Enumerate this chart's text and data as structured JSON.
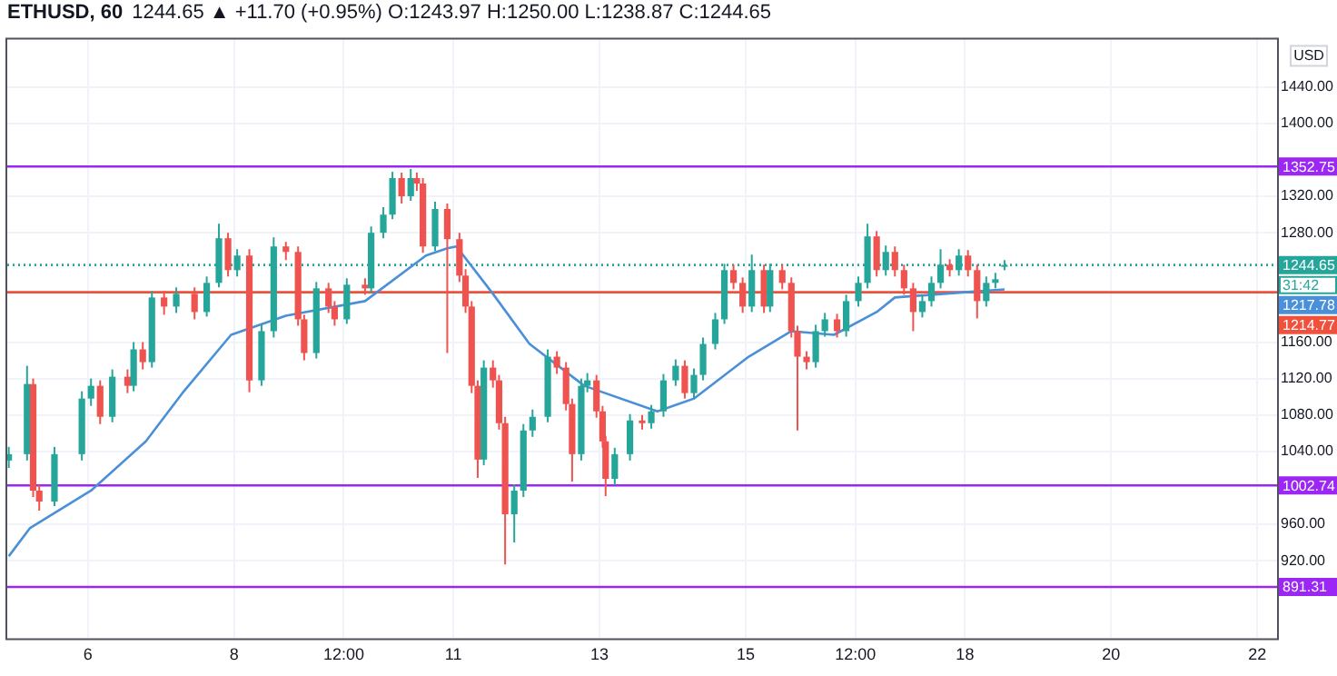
{
  "chart_data": {
    "type": "candlestick",
    "title": "ETHUSD, 60",
    "subtitle": "1244.65 ▲ +11.70 (+0.95%) O:1243.97 H:1250.00 L:1238.87 C:1244.65",
    "ylabel": "USD",
    "xlim": [
      "--01-04T21:30",
      "--01-22T06:30"
    ],
    "xticks": [
      {
        "value": "--01-06",
        "label": "6"
      },
      {
        "value": "--01-08",
        "label": "8"
      },
      {
        "value": "--01-09T12:00",
        "label": "12:00"
      },
      {
        "value": "--01-11",
        "label": "11"
      },
      {
        "value": "--01-13",
        "label": "13"
      },
      {
        "value": "--01-15",
        "label": "15"
      },
      {
        "value": "--01-16T12:00",
        "label": "12:00"
      },
      {
        "value": "--01-18",
        "label": "18"
      },
      {
        "value": "--01-20",
        "label": "20"
      },
      {
        "value": "--01-22",
        "label": "22"
      }
    ],
    "ylim": [
      835,
      1492
    ],
    "yticks": [
      {
        "value": 920,
        "label": "920.00"
      },
      {
        "value": 960,
        "label": "960.00"
      },
      {
        "value": 1040,
        "label": "1040.00"
      },
      {
        "value": 1080,
        "label": "1080.00"
      },
      {
        "value": 1120,
        "label": "1120.00"
      },
      {
        "value": 1160,
        "label": "1160.00"
      },
      {
        "value": 1280,
        "label": "1280.00"
      },
      {
        "value": 1320,
        "label": "1320.00"
      },
      {
        "value": 1400,
        "label": "1400.00"
      },
      {
        "value": 1440,
        "label": "1440.00"
      }
    ],
    "grid": true,
    "legend": false,
    "ref_lines": [
      {
        "axis": "y",
        "value": 1244.65,
        "label": "1244.65",
        "color": "#26a69a",
        "line_style": "dotted"
      },
      {
        "axis": "y",
        "value": 1352.75,
        "label": "1352.75",
        "color": "#9c27f5"
      },
      {
        "axis": "y",
        "value": 1002.74,
        "label": "1002.74",
        "color": "#9c27f5"
      },
      {
        "axis": "y",
        "value": 891.31,
        "label": "891.31",
        "color": "#9c27f5"
      },
      {
        "axis": "y",
        "value": 1214.77,
        "label": "1214.77",
        "color": "#f0513c"
      }
    ],
    "annotations": [
      "31:42",
      "1217.78"
    ],
    "series": [
      {
        "type": "line",
        "color": "#4a90d9",
        "x": [
          "--01-04T22:00",
          "--01-05T05:00",
          "--01-06T01:00",
          "--01-06T19:00",
          "--01-07T07:00",
          "--01-07T23:00",
          "--01-08T17:00",
          "--01-09T19:00",
          "--01-10T15:00",
          "--01-10T22:00",
          "--01-11T01:00",
          "--01-11T13:00",
          "--01-12T01:00",
          "--01-12T19:00",
          "--01-13T19:00",
          "--01-14T07:00",
          "--01-15T01:00",
          "--01-15T15:00",
          "--01-16T05:00",
          "--01-16T19:00",
          "--01-17T01:00",
          "--01-18T01:00",
          "--01-18T13:00"
        ],
        "values": [
          925,
          956,
          997,
          1051,
          1104,
          1168,
          1189,
          1205,
          1255,
          1263,
          1265,
          1213,
          1158,
          1112,
          1084,
          1098,
          1144,
          1172,
          1168,
          1193,
          1209,
          1215,
          1217.78
        ]
      },
      {
        "type": "candlestick",
        "x": [
          "--01-04T22:00",
          "--01-05T04:00",
          "--01-05T06:00",
          "--01-05T08:00",
          "--01-05T13:00",
          "--01-05T22:00",
          "--01-06T01:00",
          "--01-06T04:00",
          "--01-06T08:00",
          "--01-06T13:00",
          "--01-06T15:00",
          "--01-06T18:00",
          "--01-06T21:00",
          "--01-07T01:00",
          "--01-07T05:00",
          "--01-07T11:00",
          "--01-07T15:00",
          "--01-07T19:00",
          "--01-07T22:00",
          "--01-08T01:00",
          "--01-08T05:00",
          "--01-08T09:00",
          "--01-08T13:00",
          "--01-08T17:00",
          "--01-08T21:00",
          "--01-08T23:00",
          "--01-09T03:00",
          "--01-09T07:00",
          "--01-09T09:00",
          "--01-09T13:00",
          "--01-09T19:00",
          "--01-09T21:00",
          "--01-10T01:00",
          "--01-10T04:00",
          "--01-10T07:00",
          "--01-10T10:00",
          "--01-10T12:00",
          "--01-10T14:00",
          "--01-10T18:00",
          "--01-10T22:00",
          "--01-11T02:00",
          "--01-11T04:00",
          "--01-11T06:00",
          "--01-11T08:00",
          "--01-11T10:00",
          "--01-11T13:00",
          "--01-11T15:00",
          "--01-11T17:00",
          "--01-11T20:00",
          "--01-11T23:00",
          "--01-12T02:00",
          "--01-12T07:00",
          "--01-12T10:00",
          "--01-12T13:00",
          "--01-12T15:00",
          "--01-12T18:00",
          "--01-12T20:00",
          "--01-12T23:00",
          "--01-13T01:00",
          "--01-13T02:00",
          "--01-13T05:00",
          "--01-13T10:00",
          "--01-13T14:00",
          "--01-13T17:00",
          "--01-13T21:00",
          "--01-14T01:00",
          "--01-14T04:00",
          "--01-14T07:00",
          "--01-14T10:00",
          "--01-14T14:00",
          "--01-14T17:00",
          "--01-14T20:00",
          "--01-14T23:00",
          "--01-15T02:00",
          "--01-15T06:00",
          "--01-15T08:00",
          "--01-15T12:00",
          "--01-15T15:00",
          "--01-15T17:00",
          "--01-15T20:00",
          "--01-15T23:00",
          "--01-16T02:00",
          "--01-16T06:00",
          "--01-16T09:00",
          "--01-16T13:00",
          "--01-16T16:00",
          "--01-16T19:00",
          "--01-16T22:00",
          "--01-17T01:00",
          "--01-17T04:00",
          "--01-17T07:00",
          "--01-17T10:00",
          "--01-17T13:00",
          "--01-17T16:00",
          "--01-17T19:00",
          "--01-17T22:00",
          "--01-18T01:00",
          "--01-18T04:00",
          "--01-18T07:00",
          "--01-18T10:00",
          "--01-18T13:00"
        ],
        "ohlc": [
          [
            1030,
            1045,
            1022,
            1037
          ],
          [
            1037,
            1134,
            1030,
            1114
          ],
          [
            1114,
            1120,
            990,
            997
          ],
          [
            997,
            1003,
            975,
            985
          ],
          [
            985,
            1045,
            980,
            1037
          ],
          [
            1037,
            1106,
            1030,
            1098
          ],
          [
            1098,
            1120,
            1090,
            1112
          ],
          [
            1112,
            1118,
            1070,
            1078
          ],
          [
            1078,
            1130,
            1072,
            1122
          ],
          [
            1122,
            1130,
            1104,
            1112
          ],
          [
            1112,
            1160,
            1106,
            1152
          ],
          [
            1152,
            1160,
            1130,
            1138
          ],
          [
            1138,
            1216,
            1132,
            1209
          ],
          [
            1209,
            1216,
            1190,
            1199
          ],
          [
            1199,
            1220,
            1192,
            1213
          ],
          [
            1213,
            1220,
            1185,
            1193
          ],
          [
            1193,
            1232,
            1188,
            1225
          ],
          [
            1225,
            1290,
            1220,
            1274
          ],
          [
            1274,
            1280,
            1232,
            1239
          ],
          [
            1239,
            1262,
            1232,
            1255
          ],
          [
            1255,
            1262,
            1105,
            1118
          ],
          [
            1118,
            1180,
            1112,
            1172
          ],
          [
            1172,
            1275,
            1165,
            1265
          ],
          [
            1265,
            1270,
            1250,
            1259
          ],
          [
            1259,
            1265,
            1178,
            1185
          ],
          [
            1185,
            1190,
            1140,
            1148
          ],
          [
            1148,
            1226,
            1142,
            1219
          ],
          [
            1219,
            1225,
            1192,
            1199
          ],
          [
            1199,
            1205,
            1178,
            1185
          ],
          [
            1185,
            1230,
            1180,
            1223
          ],
          [
            1223,
            1230,
            1212,
            1219
          ],
          [
            1219,
            1287,
            1214,
            1280
          ],
          [
            1280,
            1308,
            1274,
            1300
          ],
          [
            1300,
            1347,
            1295,
            1340
          ],
          [
            1340,
            1346,
            1312,
            1320
          ],
          [
            1320,
            1350,
            1315,
            1340
          ],
          [
            1340,
            1346,
            1326,
            1334
          ],
          [
            1334,
            1340,
            1258,
            1265
          ],
          [
            1265,
            1314,
            1260,
            1306
          ],
          [
            1306,
            1312,
            1148,
            1273
          ],
          [
            1273,
            1280,
            1226,
            1233
          ],
          [
            1233,
            1240,
            1192,
            1199
          ],
          [
            1199,
            1205,
            1104,
            1112
          ],
          [
            1112,
            1118,
            1011,
            1031
          ],
          [
            1031,
            1140,
            1025,
            1132
          ],
          [
            1132,
            1140,
            1110,
            1118
          ],
          [
            1118,
            1124,
            1064,
            1071
          ],
          [
            1071,
            1078,
            916,
            971
          ],
          [
            971,
            1004,
            940,
            997
          ],
          [
            997,
            1070,
            990,
            1063
          ],
          [
            1063,
            1086,
            1056,
            1078
          ],
          [
            1078,
            1152,
            1072,
            1144
          ],
          [
            1144,
            1150,
            1125,
            1132
          ],
          [
            1132,
            1138,
            1085,
            1092
          ],
          [
            1092,
            1098,
            1007,
            1037
          ],
          [
            1037,
            1120,
            1030,
            1112
          ],
          [
            1112,
            1126,
            1105,
            1118
          ],
          [
            1118,
            1124,
            1077,
            1084
          ],
          [
            1084,
            1090,
            1044,
            1051
          ],
          [
            1051,
            1057,
            991,
            1010
          ],
          [
            1010,
            1044,
            1003,
            1037
          ],
          [
            1037,
            1081,
            1030,
            1074
          ],
          [
            1074,
            1080,
            1064,
            1071
          ],
          [
            1071,
            1091,
            1065,
            1084
          ],
          [
            1084,
            1125,
            1078,
            1118
          ],
          [
            1118,
            1141,
            1112,
            1134
          ],
          [
            1134,
            1140,
            1098,
            1104
          ],
          [
            1104,
            1131,
            1098,
            1124
          ],
          [
            1124,
            1165,
            1118,
            1158
          ],
          [
            1158,
            1192,
            1152,
            1185
          ],
          [
            1185,
            1246,
            1180,
            1239
          ],
          [
            1239,
            1245,
            1218,
            1225
          ],
          [
            1225,
            1231,
            1192,
            1199
          ],
          [
            1199,
            1256,
            1193,
            1239
          ],
          [
            1239,
            1245,
            1192,
            1199
          ],
          [
            1199,
            1246,
            1193,
            1239
          ],
          [
            1239,
            1245,
            1218,
            1225
          ],
          [
            1225,
            1231,
            1165,
            1172
          ],
          [
            1172,
            1178,
            1063,
            1144
          ],
          [
            1144,
            1150,
            1130,
            1138
          ],
          [
            1138,
            1179,
            1132,
            1172
          ],
          [
            1172,
            1192,
            1166,
            1185
          ],
          [
            1185,
            1191,
            1165,
            1172
          ],
          [
            1172,
            1212,
            1166,
            1205
          ],
          [
            1205,
            1232,
            1199,
            1225
          ],
          [
            1225,
            1290,
            1219,
            1276
          ],
          [
            1276,
            1282,
            1232,
            1239
          ],
          [
            1239,
            1266,
            1233,
            1259
          ],
          [
            1259,
            1265,
            1232,
            1239
          ],
          [
            1239,
            1245,
            1212,
            1219
          ],
          [
            1219,
            1225,
            1172,
            1193
          ],
          [
            1193,
            1212,
            1187,
            1205
          ],
          [
            1205,
            1232,
            1199,
            1225
          ],
          [
            1225,
            1262,
            1219,
            1245
          ],
          [
            1245,
            1251,
            1232,
            1239
          ],
          [
            1239,
            1262,
            1233,
            1255
          ],
          [
            1255,
            1261,
            1232,
            1239
          ],
          [
            1239,
            1245,
            1186,
            1205
          ],
          [
            1205,
            1232,
            1199,
            1225
          ],
          [
            1225,
            1236,
            1219,
            1229
          ],
          [
            1243.97,
            1250.0,
            1238.87,
            1244.65
          ]
        ],
        "colors": [
          "#26a69a",
          "#26a69a",
          "#ef5350",
          "#ef5350",
          "#26a69a",
          "#26a69a",
          "#26a69a",
          "#ef5350",
          "#26a69a",
          "#ef5350",
          "#26a69a",
          "#ef5350",
          "#26a69a",
          "#ef5350",
          "#26a69a",
          "#ef5350",
          "#26a69a",
          "#26a69a",
          "#ef5350",
          "#26a69a",
          "#ef5350",
          "#26a69a",
          "#26a69a",
          "#ef5350",
          "#ef5350",
          "#ef5350",
          "#26a69a",
          "#ef5350",
          "#ef5350",
          "#26a69a",
          "#ef5350",
          "#26a69a",
          "#26a69a",
          "#26a69a",
          "#ef5350",
          "#26a69a",
          "#ef5350",
          "#ef5350",
          "#26a69a",
          "#ef5350",
          "#ef5350",
          "#ef5350",
          "#ef5350",
          "#ef5350",
          "#26a69a",
          "#ef5350",
          "#ef5350",
          "#ef5350",
          "#26a69a",
          "#26a69a",
          "#26a69a",
          "#26a69a",
          "#ef5350",
          "#ef5350",
          "#ef5350",
          "#26a69a",
          "#26a69a",
          "#ef5350",
          "#ef5350",
          "#ef5350",
          "#26a69a",
          "#26a69a",
          "#ef5350",
          "#26a69a",
          "#26a69a",
          "#26a69a",
          "#ef5350",
          "#26a69a",
          "#26a69a",
          "#26a69a",
          "#26a69a",
          "#ef5350",
          "#ef5350",
          "#26a69a",
          "#ef5350",
          "#26a69a",
          "#ef5350",
          "#ef5350",
          "#ef5350",
          "#ef5350",
          "#26a69a",
          "#26a69a",
          "#ef5350",
          "#26a69a",
          "#26a69a",
          "#26a69a",
          "#ef5350",
          "#26a69a",
          "#ef5350",
          "#ef5350",
          "#ef5350",
          "#26a69a",
          "#26a69a",
          "#26a69a",
          "#ef5350",
          "#26a69a",
          "#ef5350",
          "#ef5350",
          "#26a69a",
          "#26a69a",
          "#26a69a"
        ]
      }
    ]
  }
}
